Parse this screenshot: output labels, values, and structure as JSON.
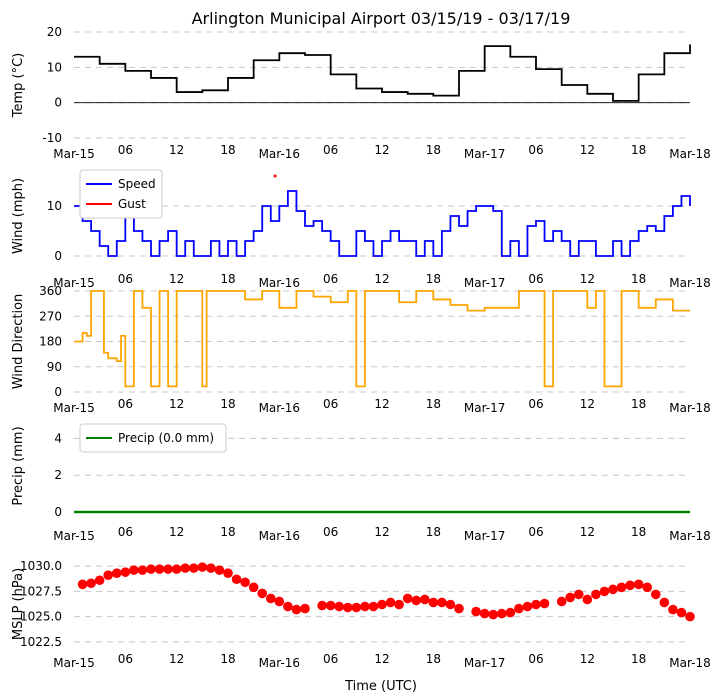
{
  "title": "Arlington Municipal Airport 03/15/19 - 03/17/19",
  "xlabel": "Time (UTC)",
  "x_ticks": [
    "Mar-15",
    "06",
    "12",
    "18",
    "Mar-16",
    "06",
    "12",
    "18",
    "Mar-17",
    "06",
    "12",
    "18",
    "Mar-18"
  ],
  "colors": {
    "temp": "#000000",
    "speed": "#0000ff",
    "gust": "#ff0000",
    "dir": "#ffa500",
    "precip": "#008000",
    "mslp": "#ff0000",
    "grid": "#c8c8c8"
  },
  "chart_data": [
    {
      "id": "temp",
      "type": "line",
      "ylabel": "Temp ($^\\circ$C)",
      "ylabel_display": "Temp (°C)",
      "ylim": [
        -10,
        20
      ],
      "yticks": [
        -10,
        0,
        10,
        20
      ],
      "zero_line": true,
      "x_hours": [
        0,
        3,
        6,
        9,
        12,
        15,
        18,
        21,
        24,
        27,
        30,
        33,
        36,
        39,
        42,
        45,
        48,
        51,
        54,
        57,
        60,
        63,
        66,
        69,
        72
      ],
      "series": [
        {
          "name": "Temp",
          "values": [
            13,
            11,
            9,
            7,
            3,
            3.5,
            7,
            12,
            14,
            13.5,
            8,
            4,
            3,
            2.5,
            2,
            9,
            16,
            13,
            9.5,
            5,
            2.5,
            0.5,
            8,
            14,
            16.5
          ]
        }
      ]
    },
    {
      "id": "wind",
      "type": "line",
      "ylabel": "Wind (mph)",
      "ylim": [
        -2,
        18
      ],
      "yticks": [
        0,
        10
      ],
      "legend": [
        "Speed",
        "Gust"
      ],
      "x_hours": [
        0,
        1,
        2,
        3,
        4,
        5,
        6,
        7,
        8,
        9,
        10,
        11,
        12,
        13,
        14,
        15,
        16,
        17,
        18,
        19,
        20,
        21,
        22,
        23,
        24,
        25,
        26,
        27,
        28,
        29,
        30,
        31,
        32,
        33,
        34,
        35,
        36,
        37,
        38,
        39,
        40,
        41,
        42,
        43,
        44,
        45,
        46,
        47,
        48,
        49,
        50,
        51,
        52,
        53,
        54,
        55,
        56,
        57,
        58,
        59,
        60,
        61,
        62,
        63,
        64,
        65,
        66,
        67,
        68,
        69,
        70,
        71,
        72
      ],
      "series": [
        {
          "name": "Speed",
          "values": [
            10,
            7,
            5,
            2,
            0,
            3,
            8,
            5,
            3,
            0,
            3,
            5,
            0,
            3,
            0,
            0,
            3,
            0,
            3,
            0,
            3,
            5,
            10,
            7,
            10,
            13,
            9,
            6,
            7,
            5,
            3,
            0,
            0,
            5,
            3,
            0,
            3,
            5,
            3,
            3,
            0,
            3,
            0,
            5,
            8,
            6,
            9,
            10,
            10,
            9,
            0,
            3,
            0,
            6,
            7,
            3,
            5,
            3,
            0,
            3,
            3,
            0,
            0,
            3,
            0,
            3,
            5,
            6,
            5,
            8,
            10,
            12,
            10
          ]
        },
        {
          "name": "Gust",
          "points": [
            [
              23.5,
              16
            ]
          ]
        }
      ]
    },
    {
      "id": "dir",
      "type": "line",
      "ylabel": "Wind Direction",
      "ylim": [
        0,
        360
      ],
      "yticks": [
        0,
        90,
        180,
        270,
        360
      ],
      "x_hours": [
        0,
        1,
        1.5,
        2,
        3,
        3.5,
        4,
        5,
        5.5,
        6,
        7,
        7.5,
        8,
        9,
        10,
        11,
        12,
        14,
        15,
        15.5,
        16,
        18,
        20,
        22,
        24,
        26,
        28,
        30,
        32,
        33,
        34,
        36,
        38,
        40,
        42,
        44,
        46,
        48,
        50,
        52,
        54,
        55,
        56,
        57,
        58,
        60,
        61,
        62,
        64,
        66,
        68,
        70,
        72
      ],
      "series": [
        {
          "name": "Direction",
          "values": [
            180,
            210,
            200,
            360,
            360,
            140,
            120,
            110,
            200,
            20,
            360,
            360,
            300,
            20,
            360,
            20,
            360,
            360,
            20,
            360,
            360,
            360,
            330,
            360,
            300,
            360,
            340,
            320,
            360,
            20,
            360,
            360,
            320,
            360,
            330,
            310,
            290,
            300,
            300,
            360,
            360,
            20,
            360,
            360,
            360,
            300,
            360,
            20,
            360,
            300,
            330,
            290,
            290
          ]
        }
      ]
    },
    {
      "id": "precip",
      "type": "line",
      "ylabel": "Precip (mm)",
      "ylim": [
        0,
        5
      ],
      "yticks": [
        0,
        2,
        4
      ],
      "legend": [
        "Precip (0.0 mm)"
      ],
      "x_hours": [
        0,
        72
      ],
      "series": [
        {
          "name": "Precip (0.0 mm)",
          "values": [
            0,
            0
          ]
        }
      ]
    },
    {
      "id": "mslp",
      "type": "scatter",
      "ylabel": "MSLP (hPa)",
      "ylim": [
        1021.5,
        1031
      ],
      "yticks": [
        1022.5,
        1025.0,
        1027.5,
        1030.0
      ],
      "ytick_labels": [
        "1022.5",
        "1025.0",
        "1027.5",
        "1030.0"
      ],
      "x_hours": [
        1,
        2,
        3,
        4,
        5,
        6,
        7,
        8,
        9,
        10,
        11,
        12,
        13,
        14,
        15,
        16,
        17,
        18,
        19,
        20,
        21,
        22,
        23,
        24,
        25,
        26,
        27,
        29,
        30,
        31,
        32,
        33,
        34,
        35,
        36,
        37,
        38,
        39,
        40,
        41,
        42,
        43,
        44,
        45,
        47,
        48,
        49,
        50,
        51,
        52,
        53,
        54,
        55,
        57,
        58,
        59,
        60,
        61,
        62,
        63,
        64,
        65,
        66,
        67,
        68,
        69,
        70,
        71,
        72
      ],
      "series": [
        {
          "name": "MSLP",
          "values": [
            1028.2,
            1028.3,
            1028.6,
            1029.1,
            1029.3,
            1029.4,
            1029.6,
            1029.6,
            1029.7,
            1029.7,
            1029.7,
            1029.7,
            1029.8,
            1029.8,
            1029.9,
            1029.8,
            1029.6,
            1029.3,
            1028.7,
            1028.4,
            1027.9,
            1027.3,
            1026.8,
            1026.5,
            1026.0,
            1025.7,
            1025.8,
            1026.1,
            1026.1,
            1026.0,
            1025.9,
            1025.9,
            1026.0,
            1026.0,
            1026.2,
            1026.4,
            1026.2,
            1026.8,
            1026.6,
            1026.7,
            1026.4,
            1026.4,
            1026.2,
            1025.8,
            1025.5,
            1025.3,
            1025.2,
            1025.3,
            1025.4,
            1025.8,
            1026.0,
            1026.2,
            1026.3,
            1026.5,
            1026.9,
            1027.2,
            1026.7,
            1027.2,
            1027.5,
            1027.7,
            1027.9,
            1028.1,
            1028.2,
            1027.9,
            1027.2,
            1026.4,
            1025.7,
            1025.4,
            1025.0
          ]
        }
      ]
    }
  ]
}
